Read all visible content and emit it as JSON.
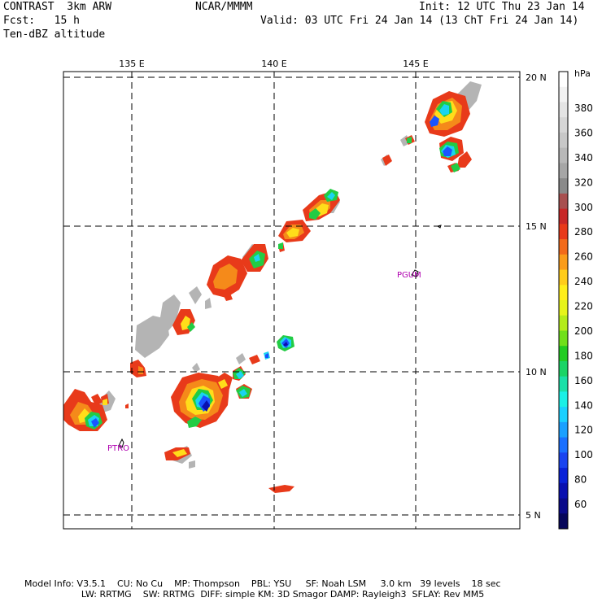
{
  "header": {
    "model": "CONTRAST  3km ARW",
    "institution": "NCAR/MMMM",
    "init": "Init: 12 UTC Thu 23 Jan 14",
    "fcst": "Fcst:   15 h",
    "valid": "Valid: 03 UTC Fri 24 Jan 14 (13 ChT Fri 24 Jan 14)",
    "field": "Ten-dBZ altitude"
  },
  "map": {
    "lon_labels": [
      "135 E",
      "140 E",
      "145 E"
    ],
    "lat_labels": [
      "20 N",
      "15 N",
      "10 N",
      "5 N"
    ],
    "lon_values": [
      135,
      140,
      145
    ],
    "lat_values": [
      20,
      15,
      10,
      5
    ],
    "stations": [
      {
        "name": "PGUM",
        "lon": 144.9,
        "lat": 13.5
      },
      {
        "name": "PTRO",
        "lon": 134.5,
        "lat": 7.4
      }
    ]
  },
  "colorbar": {
    "unit": "hPa",
    "labels": [
      "380",
      "360",
      "340",
      "320",
      "300",
      "280",
      "260",
      "240",
      "220",
      "200",
      "180",
      "160",
      "140",
      "120",
      "100",
      "80",
      "60"
    ],
    "colors": [
      "#ffffff",
      "#f2f2f2",
      "#e4e4e4",
      "#d6d6d6",
      "#c8c8c8",
      "#b8b8b8",
      "#a6a6a6",
      "#8a8a8a",
      "#a85050",
      "#c82828",
      "#e83a1a",
      "#f26a1a",
      "#fa9c1a",
      "#ffcc1a",
      "#ffee1a",
      "#e6f41a",
      "#b4ec1a",
      "#70e01a",
      "#22cc22",
      "#1ad466",
      "#1ae0a8",
      "#1af0e6",
      "#1ad0ff",
      "#1aa0ff",
      "#1a70ff",
      "#1a44f0",
      "#0a22d8",
      "#0a10b0",
      "#0a0a8a",
      "#06065a"
    ]
  },
  "footer": {
    "line1": "Model Info: V3.5.1    CU: No Cu    MP: Thompson    PBL: YSU     SF: Noah LSM     3.0 km   39 levels    18 sec",
    "line2": "                    LW: RRTMG    SW: RRTMG  DIFF: simple KM: 3D Smagor DAMP: Rayleigh3  SFLAY: Rev MM5"
  }
}
